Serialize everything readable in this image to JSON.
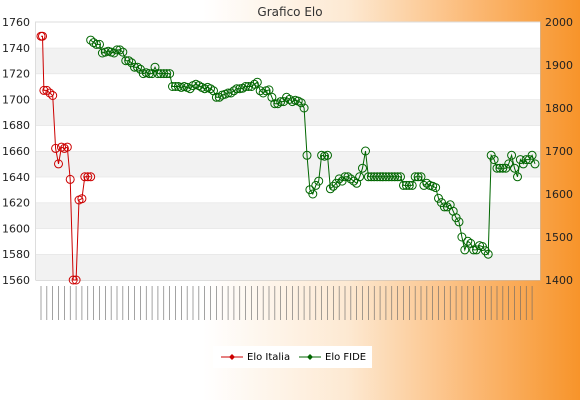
{
  "chart_data": {
    "type": "line",
    "title": "Grafico Elo",
    "y_left": {
      "ylim": [
        1560,
        1760
      ],
      "ticks": [
        1560,
        1580,
        1600,
        1620,
        1640,
        1660,
        1680,
        1700,
        1720,
        1740,
        1760
      ]
    },
    "y_right": {
      "ylim": [
        1400,
        2000
      ],
      "ticks": [
        1400,
        1500,
        1600,
        1700,
        1800,
        1900,
        2000
      ]
    },
    "grid": "horizontal bands",
    "legend_position": "bottom",
    "series": [
      {
        "name": "Elo Italia",
        "axis": "left",
        "color": "#cc0000",
        "x": [
          0,
          0.5,
          1,
          2,
          3,
          4,
          5,
          6,
          7,
          8,
          9,
          10,
          11,
          12,
          13,
          14,
          15,
          16,
          17
        ],
        "values": [
          1749,
          1749,
          1707,
          1707,
          1705,
          1703,
          1662,
          1650,
          1663,
          1662,
          1663,
          1638,
          1560,
          1560,
          1622,
          1623,
          1640,
          1640,
          1640
        ]
      },
      {
        "name": "Elo FIDE",
        "axis": "right",
        "color": "#006600",
        "x_start": 17,
        "values": [
          1958,
          1952,
          1948,
          1948,
          1928,
          1930,
          1932,
          1930,
          1928,
          1935,
          1935,
          1930,
          1910,
          1910,
          1905,
          1895,
          1895,
          1890,
          1880,
          1882,
          1880,
          1880,
          1895,
          1880,
          1880,
          1880,
          1880,
          1880,
          1850,
          1850,
          1850,
          1848,
          1850,
          1848,
          1845,
          1852,
          1855,
          1852,
          1848,
          1845,
          1848,
          1845,
          1840,
          1825,
          1825,
          1830,
          1832,
          1835,
          1835,
          1840,
          1845,
          1845,
          1846,
          1850,
          1850,
          1850,
          1855,
          1860,
          1840,
          1835,
          1840,
          1842,
          1825,
          1810,
          1810,
          1815,
          1815,
          1825,
          1820,
          1815,
          1818,
          1816,
          1812,
          1800,
          1690,
          1610,
          1600,
          1620,
          1630,
          1690,
          1688,
          1690,
          1612,
          1618,
          1625,
          1635,
          1630,
          1640,
          1640,
          1635,
          1630,
          1625,
          1640,
          1660,
          1700,
          1640,
          1640,
          1640,
          1640,
          1640,
          1640,
          1640,
          1640,
          1640,
          1640,
          1640,
          1640,
          1620,
          1620,
          1620,
          1620,
          1640,
          1640,
          1640,
          1620,
          1625,
          1620,
          1618,
          1615,
          1590,
          1580,
          1570,
          1570,
          1575,
          1560,
          1545,
          1535,
          1500,
          1470,
          1490,
          1485,
          1470,
          1470,
          1480,
          1478,
          1468,
          1460,
          1690,
          1680,
          1660,
          1660,
          1660,
          1660,
          1670,
          1690,
          1660,
          1640,
          1680,
          1670,
          1680,
          1680,
          1690,
          1670
        ]
      }
    ]
  },
  "legend": [
    {
      "label": "Elo Italia",
      "color": "#cc0000"
    },
    {
      "label": "Elo FIDE",
      "color": "#006600"
    }
  ]
}
